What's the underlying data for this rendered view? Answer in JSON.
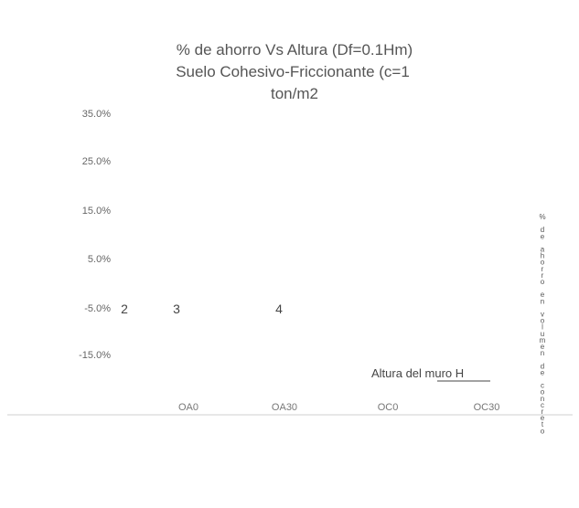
{
  "chart_data": {
    "type": "line",
    "title": [
      "% de ahorro Vs Altura (Df=0.1Hm)",
      "Suelo Cohesivo-Friccionante (c=1",
      "ton/m2"
    ],
    "y_ticks": [
      "35.0%",
      "25.0%",
      "15.0%",
      "5.0%",
      "-5.0%",
      "-15.0%"
    ],
    "x_axis_values": [
      "2",
      "3",
      "4"
    ],
    "categories": [
      "OA0",
      "OA30",
      "OC0",
      "OC30"
    ],
    "xlabel": "Altura del muro H",
    "ylabel": "% de ahorro en volumen de concreto",
    "grid": false
  }
}
